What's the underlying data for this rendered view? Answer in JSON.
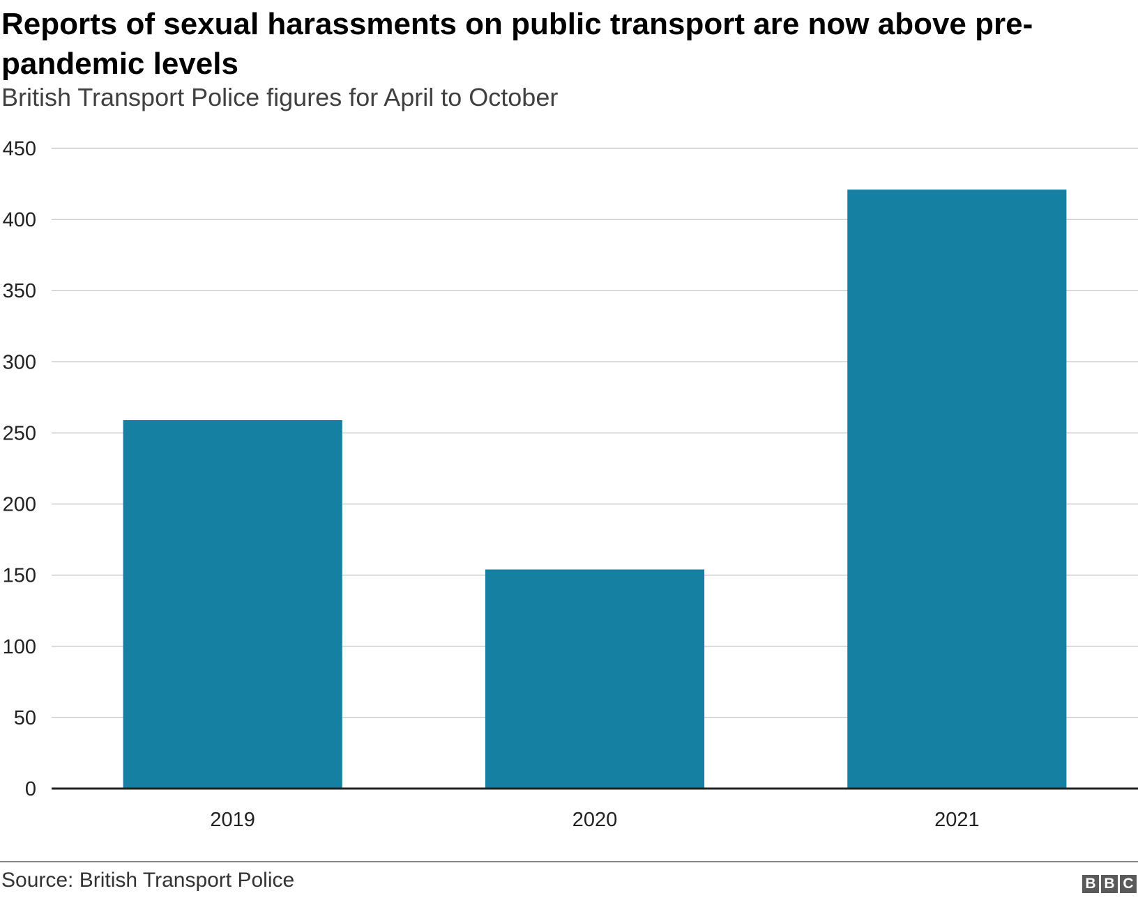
{
  "header": {
    "title": "Reports of sexual harassments on public transport are now above pre-pandemic levels",
    "subtitle": "British Transport Police figures for April to October"
  },
  "chart_data": {
    "type": "bar",
    "title": "Reports of sexual harassments on public transport are now above pre-pandemic levels",
    "subtitle": "British Transport Police figures for April to October",
    "categories": [
      "2019",
      "2020",
      "2021"
    ],
    "values": [
      259,
      154,
      421
    ],
    "ylim": [
      0,
      450
    ],
    "yticks": [
      0,
      50,
      100,
      150,
      200,
      250,
      300,
      350,
      400,
      450
    ],
    "xlabel": "",
    "ylabel": "",
    "grid": true,
    "legend": "none",
    "colors": {
      "bar": "#1580a1",
      "grid": "#cccccc",
      "baseline": "#222222"
    }
  },
  "footer": {
    "source": "Source: British Transport Police",
    "logo_letters": [
      "B",
      "B",
      "C"
    ]
  }
}
